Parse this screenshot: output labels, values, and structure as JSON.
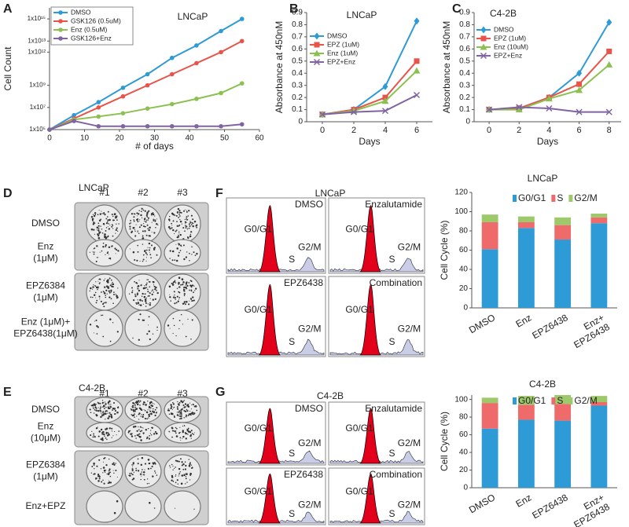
{
  "panel_letters": [
    "A",
    "B",
    "C",
    "D",
    "E",
    "F",
    "G"
  ],
  "chart_data": [
    {
      "type": "line",
      "title": "LNCaP",
      "xlabel": "# of days",
      "ylabel": "Cell Count",
      "log_y": true,
      "legend": "upper left",
      "x": [
        0,
        7,
        14,
        21,
        28,
        35,
        42,
        49,
        55
      ],
      "xlim": [
        0,
        60
      ],
      "xticks": [
        0,
        10,
        20,
        30,
        40,
        50,
        60
      ],
      "ylim": [
        100000,
        10000000000000000
      ],
      "yticks": [
        {
          "value": 100000,
          "label": "1x10⁵"
        },
        {
          "value": 10000000,
          "label": "1x10⁷"
        },
        {
          "value": 1000000000,
          "label": "1x10⁹"
        },
        {
          "value": 1000000000000,
          "label": "1x10¹²"
        },
        {
          "value": 10000000000000,
          "label": "1x10¹³"
        },
        {
          "value": 1000000000000000,
          "label": "1x10¹⁵"
        }
      ],
      "series": [
        {
          "name": "DMSO",
          "color": "#2e9bd6",
          "marker": "circle",
          "values": [
            100000,
            2000000,
            30000000,
            600000000,
            10000000000,
            300000000000,
            4000000000000,
            80000000000000,
            1000000000000000
          ]
        },
        {
          "name": "GSK126 (0.5uM)",
          "color": "#e8534a",
          "marker": "circle",
          "values": [
            100000,
            1000000,
            10000000,
            100000000,
            1000000000,
            10000000000,
            100000000000,
            1000000000000,
            10000000000000
          ]
        },
        {
          "name": "Enz (0.5uM)",
          "color": "#8cc152",
          "marker": "circle",
          "values": [
            100000,
            800000,
            1500000,
            3000000,
            8000000,
            20000000,
            60000000,
            200000000,
            1500000000
          ]
        },
        {
          "name": "GSK126+Enz",
          "color": "#8064a2",
          "marker": "circle",
          "values": [
            100000,
            600000,
            200000,
            200000,
            200000,
            200000,
            200000,
            200000,
            300000
          ]
        }
      ]
    },
    {
      "type": "line",
      "title": "LNCaP",
      "xlabel": "Days",
      "ylabel": "Absorbance at 450nM",
      "log_y": false,
      "legend": "upper left",
      "x": [
        0,
        2,
        4,
        6
      ],
      "xlim": [
        -1,
        7
      ],
      "xticks": [
        0,
        2,
        4,
        6
      ],
      "ylim": [
        0,
        0.9
      ],
      "yticks": [
        0,
        0.1,
        0.2,
        0.3,
        0.4,
        0.5,
        0.6,
        0.7,
        0.8,
        0.9
      ],
      "series": [
        {
          "name": "DMSO",
          "color": "#2e9bd6",
          "marker": "diamond",
          "values": [
            0.06,
            0.1,
            0.29,
            0.83
          ]
        },
        {
          "name": "EPZ (1uM)",
          "color": "#e8534a",
          "marker": "square",
          "values": [
            0.06,
            0.1,
            0.2,
            0.5
          ]
        },
        {
          "name": "Enz (1uM)",
          "color": "#8cc152",
          "marker": "triangle",
          "values": [
            0.06,
            0.09,
            0.17,
            0.42
          ]
        },
        {
          "name": "EPZ+Enz",
          "color": "#8064a2",
          "marker": "x",
          "values": [
            0.06,
            0.08,
            0.09,
            0.22
          ]
        }
      ]
    },
    {
      "type": "line",
      "title": "C4-2B",
      "xlabel": "Days",
      "ylabel": "Absorbance at 450nM",
      "log_y": false,
      "legend": "upper left",
      "x": [
        0,
        2,
        4,
        6,
        8
      ],
      "xlim": [
        -1,
        8.8
      ],
      "xticks": [
        0,
        2,
        4,
        6,
        8
      ],
      "ylim": [
        0,
        0.9
      ],
      "yticks": [
        0,
        0.1,
        0.2,
        0.3,
        0.4,
        0.5,
        0.6,
        0.7,
        0.8,
        0.9
      ],
      "series": [
        {
          "name": "DMSO",
          "color": "#2e9bd6",
          "marker": "diamond",
          "values": [
            0.1,
            0.11,
            0.2,
            0.4,
            0.82
          ]
        },
        {
          "name": "EPZ (1uM)",
          "color": "#e8534a",
          "marker": "square",
          "values": [
            0.1,
            0.11,
            0.2,
            0.31,
            0.58
          ]
        },
        {
          "name": "Enz (10uM)",
          "color": "#8cc152",
          "marker": "triangle",
          "values": [
            0.1,
            0.1,
            0.19,
            0.26,
            0.47
          ]
        },
        {
          "name": "EPZ+Enz",
          "color": "#8064a2",
          "marker": "x",
          "values": [
            0.1,
            0.12,
            0.11,
            0.08,
            0.08
          ]
        }
      ]
    },
    {
      "type": "stacked_bar",
      "title": "LNCaP",
      "ylabel": "Cell Cycle (%)",
      "legend": "top",
      "categories": [
        "DMSO",
        "Enz",
        "EPZ6438",
        "Enz+\nEPZ6438"
      ],
      "ylim": [
        0,
        120
      ],
      "yticks": [
        0,
        20,
        40,
        60,
        80,
        100,
        120
      ],
      "series": [
        {
          "name": "G0/G1",
          "color": "#2e9bd6",
          "values": [
            61,
            83,
            71,
            88
          ]
        },
        {
          "name": "S",
          "color": "#ef6b6b",
          "values": [
            28,
            6,
            15,
            6
          ]
        },
        {
          "name": "G2/M",
          "color": "#9dc96a",
          "values": [
            8,
            6,
            8,
            4
          ]
        }
      ]
    },
    {
      "type": "stacked_bar",
      "title": "C4-2B",
      "ylabel": "Cell Cycle (%)",
      "legend": "top",
      "categories": [
        "DMSO",
        "Enz",
        "EPZ6438",
        "Enz+\nEPZ6438"
      ],
      "ylim": [
        0,
        105
      ],
      "yticks": [
        0,
        20,
        40,
        60,
        80,
        100
      ],
      "series": [
        {
          "name": "G0/G1",
          "color": "#2e9bd6",
          "values": [
            67,
            77,
            76,
            93
          ]
        },
        {
          "name": "S",
          "color": "#ef6b6b",
          "values": [
            29,
            17,
            19,
            4
          ]
        },
        {
          "name": "G2/M",
          "color": "#9dc96a",
          "values": [
            6,
            10,
            10,
            7
          ]
        }
      ]
    }
  ],
  "plates": [
    {
      "title": "LNCaP",
      "columns": [
        "#1",
        "#2",
        "#3"
      ],
      "rows": [
        [
          "DMSO"
        ],
        [
          "Enz",
          "(1μM)"
        ],
        [
          "EPZ6384",
          "(1μM)"
        ],
        [
          "Enz (1μM)+",
          "EPZ6438(1μM)"
        ]
      ]
    },
    {
      "title": "C4-2B",
      "columns": [
        "#1",
        "#2",
        "#3"
      ],
      "rows": [
        [
          "DMSO"
        ],
        [
          "Enz",
          "(10μM)"
        ],
        [
          "EPZ6384",
          "(1μM)"
        ],
        [
          "Enz+EPZ"
        ]
      ]
    }
  ],
  "flow": [
    {
      "title": "LNCaP",
      "panels": [
        {
          "title": "DMSO",
          "labels": [
            "G0/G1",
            "S",
            "G2/M"
          ]
        },
        {
          "title": "Enzalutamide",
          "labels": [
            "G0/G1",
            "S",
            "G2/M"
          ]
        },
        {
          "title": "EPZ6438",
          "labels": [
            "G0/G1",
            "S",
            "G2/M"
          ]
        },
        {
          "title": "Combination",
          "labels": [
            "G0/G1",
            "S",
            "G2/M"
          ]
        }
      ]
    },
    {
      "title": "C4-2B",
      "panels": [
        {
          "title": "DMSO",
          "labels": [
            "G0/G1",
            "S",
            "G2/M"
          ]
        },
        {
          "title": "Enzalutamide",
          "labels": [
            "G0/G1",
            "S",
            "G2/M"
          ]
        },
        {
          "title": "EPZ6438",
          "labels": [
            "G0/G1",
            "S",
            "G2/M"
          ]
        },
        {
          "title": "Combination",
          "labels": [
            "G0/G1",
            "S",
            "G2/M"
          ]
        }
      ]
    }
  ]
}
